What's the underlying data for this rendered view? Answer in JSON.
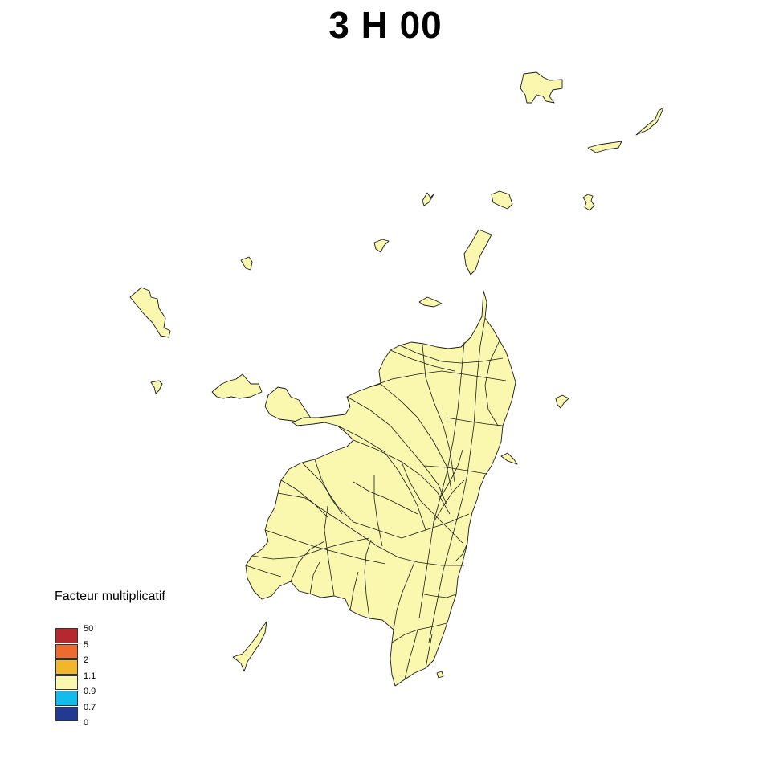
{
  "title": "3 H 00",
  "legend": {
    "title": "Facteur multiplicatif",
    "swatch_colors": [
      "#B5292E",
      "#EE6B30",
      "#F1B62E",
      "#FAF8AE",
      "#15BCEB",
      "#233A93"
    ],
    "tick_labels": [
      "50",
      "5",
      "2",
      "1.1",
      "0.9",
      "0.7",
      "0"
    ]
  },
  "map": {
    "fill_color": "#FAF8AE",
    "fill_value_class": "0.9 – 1.1"
  }
}
